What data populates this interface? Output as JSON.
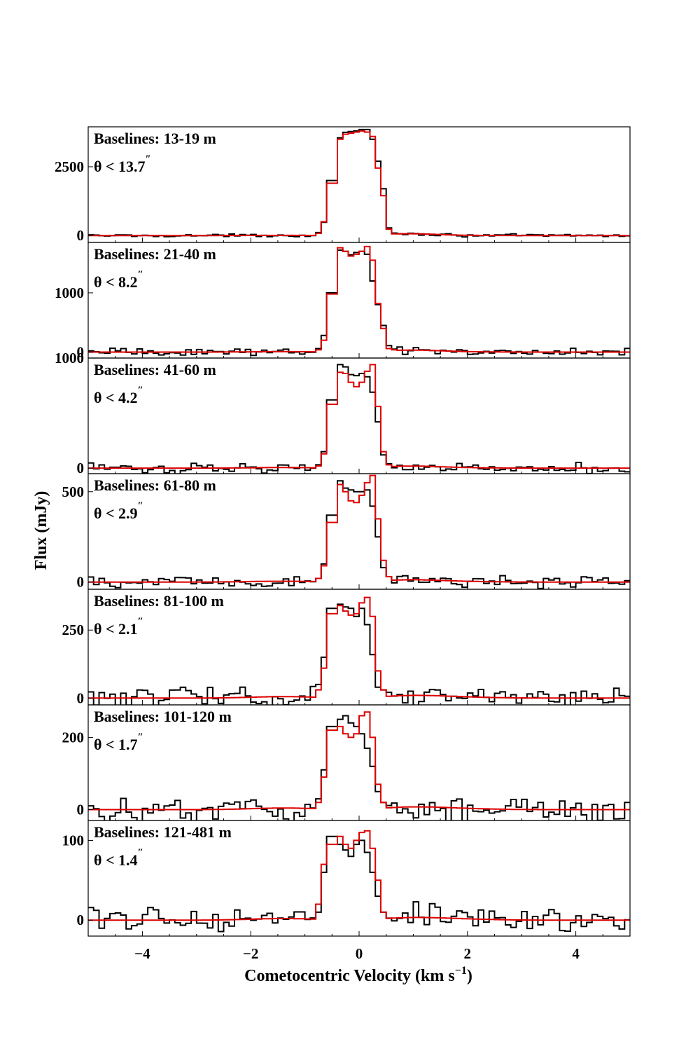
{
  "chart_data": {
    "type": "line",
    "style": "step",
    "xlabel": "Cometocentric Velocity (km s",
    "xlabel_sup": "−1",
    "xlabel_end": ")",
    "ylabel": "Flux (mJy)",
    "xlim": [
      -5,
      5
    ],
    "x_ticks": [
      -4,
      -2,
      0,
      2,
      4
    ],
    "x_tick_labels": [
      "−4",
      "−2",
      "0",
      "2",
      "4"
    ],
    "x_minor_ticks": [
      -4.5,
      -3.5,
      -3,
      -2.5,
      -1.5,
      -1,
      -0.5,
      0.5,
      1,
      1.5,
      2.5,
      3,
      3.5,
      4.5
    ],
    "bin_width": 0.1,
    "series_colors": {
      "observed": "#000000",
      "model": "#dd0000"
    },
    "panels": [
      {
        "baseline": "Baselines: 13-19 m",
        "theta": "θ < 13.7",
        "theta_sup": "″",
        "ylim": [
          -250,
          3950
        ],
        "y_ticks": [
          0,
          2500
        ],
        "y_tick_labels": [
          "0",
          "2500"
        ],
        "peak_obs": 3850,
        "peak_mod": 3830,
        "dip_obs": 0.99,
        "dip_mod": 0.97,
        "noise": 15,
        "line": [
          {
            "x": -0.7,
            "obs": 110,
            "model": 80
          },
          {
            "x": -0.6,
            "obs": 480,
            "model": 500
          },
          {
            "x": -0.5,
            "obs": 2000,
            "model": 1900
          },
          {
            "x": -0.4,
            "obs": 3050,
            "model": 3050
          },
          {
            "x": -0.3,
            "obs": 3550,
            "model": 3500
          },
          {
            "x": -0.2,
            "obs": 3750,
            "model": 3680
          },
          {
            "x": -0.1,
            "obs": 3780,
            "model": 3720
          },
          {
            "x": 0.0,
            "obs": 3800,
            "model": 3760
          },
          {
            "x": 0.1,
            "obs": 3850,
            "model": 3800
          },
          {
            "x": 0.2,
            "obs": 3850,
            "model": 3760
          },
          {
            "x": 0.3,
            "obs": 3500,
            "model": 3600
          },
          {
            "x": 0.4,
            "obs": 2700,
            "model": 2450
          },
          {
            "x": 0.5,
            "obs": 1700,
            "model": 1450
          },
          {
            "x": 0.6,
            "obs": 280,
            "model": 230
          },
          {
            "x": 0.7,
            "obs": 90,
            "model": 60
          }
        ]
      },
      {
        "baseline": "Baselines: 21-40 m",
        "theta": "θ < 8.2",
        "theta_sup": "″",
        "ylim": [
          -100,
          1850
        ],
        "y_ticks": [
          0,
          1000
        ],
        "y_tick_labels": [
          "0",
          "1000"
        ],
        "peak_obs": 1720,
        "peak_mod": 1780,
        "dip_obs": 0.95,
        "dip_mod": 0.9,
        "noise": 20,
        "line": [
          {
            "x": -0.7,
            "obs": 60,
            "model": 40
          },
          {
            "x": -0.6,
            "obs": 280,
            "model": 200
          },
          {
            "x": -0.5,
            "obs": 1000,
            "model": 980
          },
          {
            "x": -0.4,
            "obs": 1500,
            "model": 1580
          },
          {
            "x": -0.3,
            "obs": 1720,
            "model": 1760
          },
          {
            "x": -0.2,
            "obs": 1700,
            "model": 1700
          },
          {
            "x": -0.1,
            "obs": 1640,
            "model": 1620
          },
          {
            "x": 0.0,
            "obs": 1680,
            "model": 1650
          },
          {
            "x": 0.1,
            "obs": 1700,
            "model": 1700
          },
          {
            "x": 0.2,
            "obs": 1650,
            "model": 1780
          },
          {
            "x": 0.3,
            "obs": 1200,
            "model": 1550
          },
          {
            "x": 0.4,
            "obs": 800,
            "model": 820
          },
          {
            "x": 0.5,
            "obs": 450,
            "model": 400
          },
          {
            "x": 0.6,
            "obs": 110,
            "model": 60
          },
          {
            "x": 0.7,
            "obs": 50,
            "model": 40
          }
        ]
      },
      {
        "baseline": "Baselines: 41-60 m",
        "theta": "θ < 4.2",
        "theta_sup": "″",
        "ylim": [
          -50,
          1000
        ],
        "y_ticks": [
          0,
          1000
        ],
        "y_tick_labels": [
          "0",
          "1000"
        ],
        "peak_obs": 940,
        "peak_mod": 920,
        "dip_obs": 0.9,
        "dip_mod": 0.82,
        "noise": 14,
        "line": [
          {
            "x": -0.7,
            "obs": 30,
            "model": 20
          },
          {
            "x": -0.6,
            "obs": 150,
            "model": 130
          },
          {
            "x": -0.5,
            "obs": 620,
            "model": 580
          },
          {
            "x": -0.4,
            "obs": 880,
            "model": 820
          },
          {
            "x": -0.3,
            "obs": 940,
            "model": 870
          },
          {
            "x": -0.2,
            "obs": 920,
            "model": 860
          },
          {
            "x": -0.1,
            "obs": 850,
            "model": 780
          },
          {
            "x": 0.0,
            "obs": 840,
            "model": 740
          },
          {
            "x": 0.1,
            "obs": 860,
            "model": 780
          },
          {
            "x": 0.2,
            "obs": 830,
            "model": 880
          },
          {
            "x": 0.3,
            "obs": 690,
            "model": 940
          },
          {
            "x": 0.4,
            "obs": 420,
            "model": 560
          },
          {
            "x": 0.5,
            "obs": 120,
            "model": 150
          },
          {
            "x": 0.6,
            "obs": 40,
            "model": 30
          }
        ]
      },
      {
        "baseline": "Baselines: 61-80 m",
        "theta": "θ < 2.9",
        "theta_sup": "″",
        "ylim": [
          -40,
          600
        ],
        "y_ticks": [
          0,
          500
        ],
        "y_tick_labels": [
          "0",
          "500"
        ],
        "peak_obs": 550,
        "peak_mod": 590,
        "dip_obs": 0.9,
        "dip_mod": 0.76,
        "noise": 11,
        "line": [
          {
            "x": -0.7,
            "obs": 20,
            "model": 20
          },
          {
            "x": -0.6,
            "obs": 100,
            "model": 90
          },
          {
            "x": -0.5,
            "obs": 370,
            "model": 330
          },
          {
            "x": -0.4,
            "obs": 540,
            "model": 520
          },
          {
            "x": -0.3,
            "obs": 560,
            "model": 540
          },
          {
            "x": -0.2,
            "obs": 520,
            "model": 500
          },
          {
            "x": -0.1,
            "obs": 510,
            "model": 450
          },
          {
            "x": 0.0,
            "obs": 500,
            "model": 440
          },
          {
            "x": 0.1,
            "obs": 500,
            "model": 480
          },
          {
            "x": 0.2,
            "obs": 510,
            "model": 550
          },
          {
            "x": 0.3,
            "obs": 420,
            "model": 590
          },
          {
            "x": 0.4,
            "obs": 250,
            "model": 350
          },
          {
            "x": 0.5,
            "obs": 80,
            "model": 120
          },
          {
            "x": 0.6,
            "obs": 30,
            "model": 30
          }
        ]
      },
      {
        "baseline": "Baselines: 81-100 m",
        "theta": "θ < 2.1",
        "theta_sup": "″",
        "ylim": [
          -25,
          400
        ],
        "y_ticks": [
          0,
          250
        ],
        "y_tick_labels": [
          "0",
          "250"
        ],
        "peak_obs": 375,
        "peak_mod": 375,
        "dip_obs": 0.82,
        "dip_mod": 0.8,
        "noise": 13,
        "line": [
          {
            "x": -0.7,
            "obs": 50,
            "model": 30
          },
          {
            "x": -0.6,
            "obs": 150,
            "model": 110
          },
          {
            "x": -0.5,
            "obs": 330,
            "model": 310
          },
          {
            "x": -0.4,
            "obs": 370,
            "model": 360
          },
          {
            "x": -0.3,
            "obs": 345,
            "model": 340
          },
          {
            "x": -0.2,
            "obs": 335,
            "model": 320
          },
          {
            "x": -0.1,
            "obs": 330,
            "model": 305
          },
          {
            "x": 0.0,
            "obs": 300,
            "model": 310
          },
          {
            "x": 0.1,
            "obs": 330,
            "model": 350
          },
          {
            "x": 0.2,
            "obs": 270,
            "model": 370
          },
          {
            "x": 0.3,
            "obs": 160,
            "model": 300
          },
          {
            "x": 0.4,
            "obs": 40,
            "model": 100
          },
          {
            "x": 0.5,
            "obs": 30,
            "model": 30
          }
        ]
      },
      {
        "baseline": "Baselines: 101-120 m",
        "theta": "θ < 1.7",
        "theta_sup": "″",
        "ylim": [
          -30,
          290
        ],
        "y_ticks": [
          0,
          200
        ],
        "y_tick_labels": [
          "0",
          "200"
        ],
        "peak_obs": 270,
        "peak_mod": 270,
        "dip_obs": 0.85,
        "dip_mod": 0.8,
        "noise": 11,
        "line": [
          {
            "x": -0.7,
            "obs": 30,
            "model": 20
          },
          {
            "x": -0.6,
            "obs": 110,
            "model": 90
          },
          {
            "x": -0.5,
            "obs": 230,
            "model": 220
          },
          {
            "x": -0.4,
            "obs": 270,
            "model": 240
          },
          {
            "x": -0.3,
            "obs": 250,
            "model": 230
          },
          {
            "x": -0.2,
            "obs": 260,
            "model": 210
          },
          {
            "x": -0.1,
            "obs": 240,
            "model": 200
          },
          {
            "x": 0.0,
            "obs": 230,
            "model": 210
          },
          {
            "x": 0.1,
            "obs": 210,
            "model": 260
          },
          {
            "x": 0.2,
            "obs": 170,
            "model": 270
          },
          {
            "x": 0.3,
            "obs": 120,
            "model": 200
          },
          {
            "x": 0.4,
            "obs": 50,
            "model": 70
          },
          {
            "x": 0.5,
            "obs": 20,
            "model": 20
          }
        ]
      },
      {
        "baseline": "Baselines: 121-481 m",
        "theta": "θ < 1.4",
        "theta_sup": "″",
        "ylim": [
          -20,
          125
        ],
        "y_ticks": [
          0,
          100
        ],
        "y_tick_labels": [
          "0",
          "100"
        ],
        "peak_obs": 110,
        "peak_mod": 112,
        "dip_obs": 0.8,
        "dip_mod": 0.8,
        "noise": 5,
        "line": [
          {
            "x": -0.7,
            "obs": 10,
            "model": 20
          },
          {
            "x": -0.6,
            "obs": 60,
            "model": 70
          },
          {
            "x": -0.5,
            "obs": 105,
            "model": 95
          },
          {
            "x": -0.4,
            "obs": 100,
            "model": 110
          },
          {
            "x": -0.3,
            "obs": 95,
            "model": 105
          },
          {
            "x": -0.2,
            "obs": 88,
            "model": 95
          },
          {
            "x": -0.1,
            "obs": 80,
            "model": 90
          },
          {
            "x": 0.0,
            "obs": 95,
            "model": 100
          },
          {
            "x": 0.1,
            "obs": 100,
            "model": 110
          },
          {
            "x": 0.2,
            "obs": 85,
            "model": 112
          },
          {
            "x": 0.3,
            "obs": 60,
            "model": 90
          },
          {
            "x": 0.4,
            "obs": 30,
            "model": 50
          },
          {
            "x": 0.5,
            "obs": 10,
            "model": 10
          }
        ]
      }
    ]
  }
}
